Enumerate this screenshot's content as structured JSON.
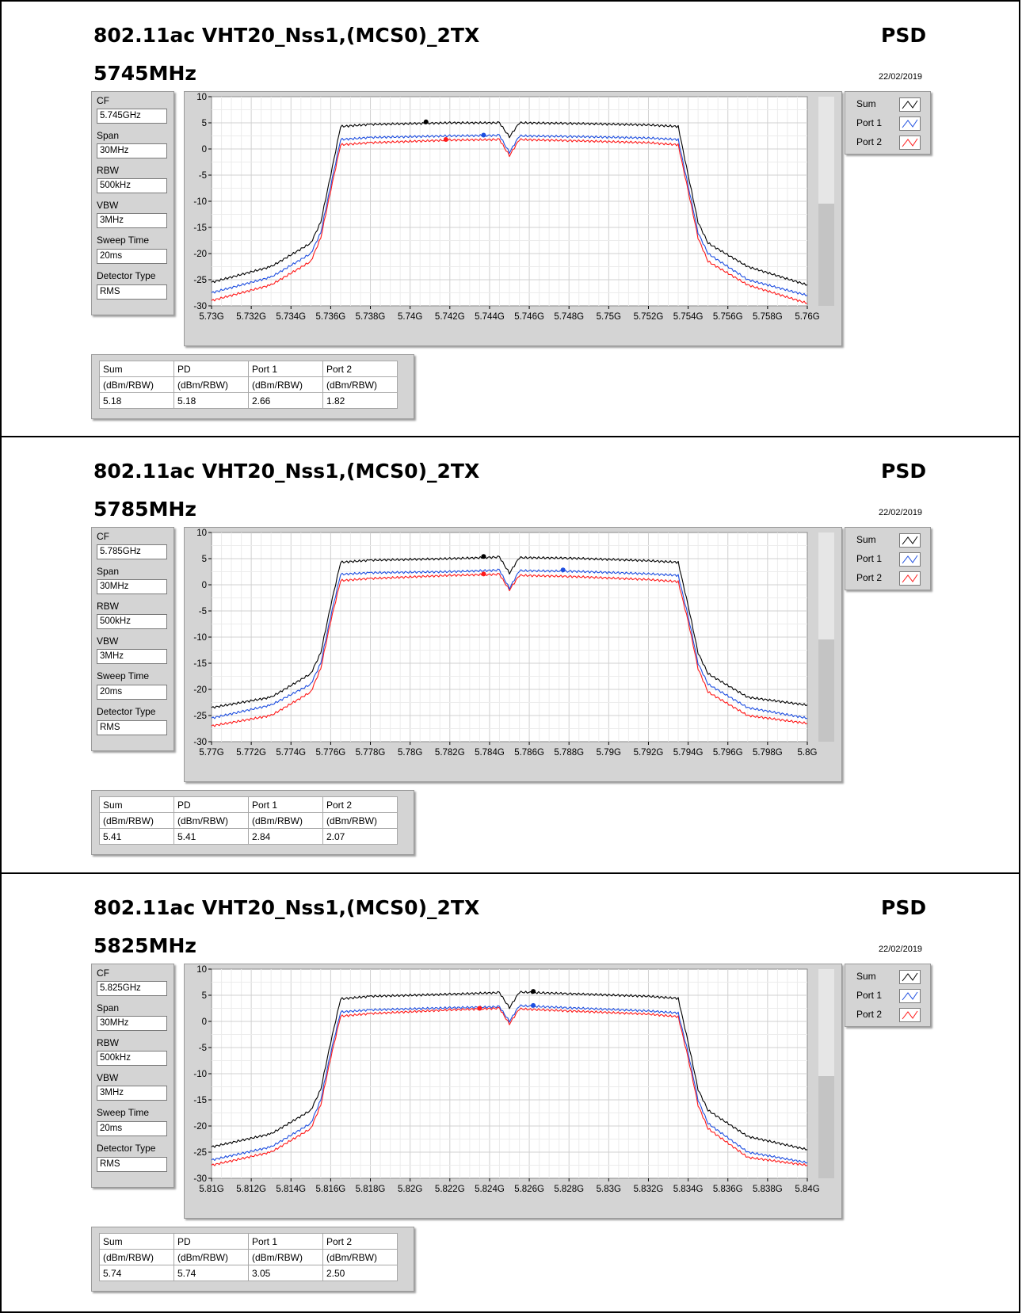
{
  "panels": [
    {
      "title": "802.11ac VHT20_Nss1,(MCS0)_2TX",
      "frequency": "5745MHz",
      "tag": "PSD",
      "date": "22/02/2019",
      "settings": [
        {
          "label": "CF",
          "value": "5.745GHz"
        },
        {
          "label": "Span",
          "value": "30MHz"
        },
        {
          "label": "RBW",
          "value": "500kHz"
        },
        {
          "label": "VBW",
          "value": "3MHz"
        },
        {
          "label": "Sweep Time",
          "value": "20ms"
        },
        {
          "label": "Detector Type",
          "value": "RMS"
        }
      ],
      "legend": [
        "Sum",
        "Port 1",
        "Port 2"
      ],
      "results": {
        "headers": [
          "Sum",
          "PD",
          "Port 1",
          "Port 2"
        ],
        "units": [
          "(dBm/RBW)",
          "(dBm/RBW)",
          "(dBm/RBW)",
          "(dBm/RBW)"
        ],
        "values": [
          "5.18",
          "5.18",
          "2.66",
          "1.82"
        ]
      }
    },
    {
      "title": "802.11ac VHT20_Nss1,(MCS0)_2TX",
      "frequency": "5785MHz",
      "tag": "PSD",
      "date": "22/02/2019",
      "settings": [
        {
          "label": "CF",
          "value": "5.785GHz"
        },
        {
          "label": "Span",
          "value": "30MHz"
        },
        {
          "label": "RBW",
          "value": "500kHz"
        },
        {
          "label": "VBW",
          "value": "3MHz"
        },
        {
          "label": "Sweep Time",
          "value": "20ms"
        },
        {
          "label": "Detector Type",
          "value": "RMS"
        }
      ],
      "legend": [
        "Sum",
        "Port 1",
        "Port 2"
      ],
      "results": {
        "headers": [
          "Sum",
          "PD",
          "Port 1",
          "Port 2"
        ],
        "units": [
          "(dBm/RBW)",
          "(dBm/RBW)",
          "(dBm/RBW)",
          "(dBm/RBW)"
        ],
        "values": [
          "5.41",
          "5.41",
          "2.84",
          "2.07"
        ]
      }
    },
    {
      "title": "802.11ac VHT20_Nss1,(MCS0)_2TX",
      "frequency": "5825MHz",
      "tag": "PSD",
      "date": "22/02/2019",
      "settings": [
        {
          "label": "CF",
          "value": "5.825GHz"
        },
        {
          "label": "Span",
          "value": "30MHz"
        },
        {
          "label": "RBW",
          "value": "500kHz"
        },
        {
          "label": "VBW",
          "value": "3MHz"
        },
        {
          "label": "Sweep Time",
          "value": "20ms"
        },
        {
          "label": "Detector Type",
          "value": "RMS"
        }
      ],
      "legend": [
        "Sum",
        "Port 1",
        "Port 2"
      ],
      "results": {
        "headers": [
          "Sum",
          "PD",
          "Port 1",
          "Port 2"
        ],
        "units": [
          "(dBm/RBW)",
          "(dBm/RBW)",
          "(dBm/RBW)",
          "(dBm/RBW)"
        ],
        "values": [
          "5.74",
          "5.74",
          "3.05",
          "2.50"
        ]
      }
    }
  ],
  "colors": {
    "sum": "#000000",
    "port1": "#1f4fe0",
    "port2": "#ff1a1a"
  },
  "chart_data": [
    {
      "type": "line",
      "xlim": [
        5.73,
        5.76
      ],
      "ylim": [
        -30,
        10
      ],
      "x_ticks": [
        "5.73G",
        "5.732G",
        "5.734G",
        "5.736G",
        "5.738G",
        "5.74G",
        "5.742G",
        "5.744G",
        "5.746G",
        "5.748G",
        "5.75G",
        "5.752G",
        "5.754G",
        "5.756G",
        "5.758G",
        "5.76G"
      ],
      "y_ticks": [
        "10",
        "5",
        "0",
        "-5",
        "-10",
        "-15",
        "-20",
        "-25",
        "-30"
      ],
      "x": [
        5.73,
        5.733,
        5.735,
        5.7355,
        5.736,
        5.7365,
        5.738,
        5.742,
        5.7445,
        5.745,
        5.7455,
        5.748,
        5.752,
        5.7535,
        5.754,
        5.7545,
        5.755,
        5.757,
        5.76
      ],
      "series": [
        {
          "name": "Sum",
          "values": [
            -25.5,
            -22.5,
            -18,
            -14,
            -5,
            4.3,
            4.7,
            5.0,
            5.0,
            2.3,
            5.0,
            4.9,
            4.6,
            4.3,
            -5,
            -14,
            -18,
            -22.5,
            -26.0
          ]
        },
        {
          "name": "Port 1",
          "values": [
            -27.5,
            -24.5,
            -20,
            -16,
            -7,
            1.8,
            2.2,
            2.5,
            2.6,
            -0.7,
            2.5,
            2.4,
            2.1,
            1.8,
            -7,
            -16,
            -20,
            -25,
            -28.0
          ]
        },
        {
          "name": "Port 2",
          "values": [
            -29.0,
            -26,
            -21.5,
            -17,
            -8,
            0.8,
            1.2,
            1.7,
            1.8,
            -1.3,
            1.8,
            1.6,
            1.2,
            0.8,
            -8,
            -17,
            -21.5,
            -26,
            -29.5
          ]
        }
      ],
      "markers": [
        {
          "series": "Sum",
          "x": 5.7408,
          "y": 5.18
        },
        {
          "series": "Port 1",
          "x": 5.7437,
          "y": 2.66
        },
        {
          "series": "Port 2",
          "x": 5.7418,
          "y": 1.82
        }
      ]
    },
    {
      "type": "line",
      "xlim": [
        5.77,
        5.8
      ],
      "ylim": [
        -30,
        10
      ],
      "x_ticks": [
        "5.77G",
        "5.772G",
        "5.774G",
        "5.776G",
        "5.778G",
        "5.78G",
        "5.782G",
        "5.784G",
        "5.786G",
        "5.788G",
        "5.79G",
        "5.792G",
        "5.794G",
        "5.796G",
        "5.798G",
        "5.8G"
      ],
      "y_ticks": [
        "10",
        "5",
        "0",
        "-5",
        "-10",
        "-15",
        "-20",
        "-25",
        "-30"
      ],
      "x": [
        5.77,
        5.773,
        5.775,
        5.7755,
        5.776,
        5.7765,
        5.778,
        5.782,
        5.7845,
        5.785,
        5.7855,
        5.788,
        5.792,
        5.7935,
        5.794,
        5.7945,
        5.795,
        5.797,
        5.8
      ],
      "series": [
        {
          "name": "Sum",
          "values": [
            -23.5,
            -21.5,
            -17,
            -13,
            -4,
            4.3,
            4.7,
            5.0,
            5.3,
            2.2,
            5.2,
            5.1,
            4.6,
            4.3,
            -4,
            -13,
            -17,
            -21.5,
            -23.0
          ]
        },
        {
          "name": "Port 1",
          "values": [
            -25.5,
            -23,
            -19,
            -15,
            -6,
            2.0,
            2.3,
            2.5,
            2.8,
            -0.7,
            2.7,
            2.6,
            2.1,
            1.8,
            -6,
            -15,
            -19,
            -23.5,
            -25.5
          ]
        },
        {
          "name": "Port 2",
          "values": [
            -27.0,
            -25,
            -20.5,
            -16,
            -7,
            0.8,
            1.2,
            1.8,
            2.0,
            -1.0,
            1.8,
            1.6,
            1.0,
            0.6,
            -7,
            -16,
            -20.5,
            -25,
            -26.5
          ]
        }
      ],
      "markers": [
        {
          "series": "Sum",
          "x": 5.7837,
          "y": 5.41
        },
        {
          "series": "Port 1",
          "x": 5.7877,
          "y": 2.84
        },
        {
          "series": "Port 2",
          "x": 5.7837,
          "y": 2.07
        }
      ]
    },
    {
      "type": "line",
      "xlim": [
        5.81,
        5.84
      ],
      "ylim": [
        -30,
        10
      ],
      "x_ticks": [
        "5.81G",
        "5.812G",
        "5.814G",
        "5.816G",
        "5.818G",
        "5.82G",
        "5.822G",
        "5.824G",
        "5.826G",
        "5.828G",
        "5.83G",
        "5.832G",
        "5.834G",
        "5.836G",
        "5.838G",
        "5.84G"
      ],
      "y_ticks": [
        "10",
        "5",
        "0",
        "-5",
        "-10",
        "-15",
        "-20",
        "-25",
        "-30"
      ],
      "x": [
        5.81,
        5.813,
        5.815,
        5.8155,
        5.816,
        5.8165,
        5.818,
        5.822,
        5.8245,
        5.825,
        5.8255,
        5.828,
        5.832,
        5.8335,
        5.834,
        5.8345,
        5.835,
        5.837,
        5.84
      ],
      "series": [
        {
          "name": "Sum",
          "values": [
            -24.0,
            -21.5,
            -17,
            -13,
            -4,
            4.3,
            4.8,
            5.2,
            5.5,
            2.6,
            5.6,
            5.3,
            4.8,
            4.4,
            -4,
            -13,
            -17,
            -22,
            -24.5
          ]
        },
        {
          "name": "Port 1",
          "values": [
            -26.5,
            -24,
            -19.5,
            -15,
            -6,
            1.8,
            2.2,
            2.6,
            2.8,
            0.0,
            3.0,
            2.6,
            2.0,
            1.6,
            -6,
            -15,
            -19.5,
            -25,
            -27.0
          ]
        },
        {
          "name": "Port 2",
          "values": [
            -27.5,
            -25,
            -20.5,
            -16,
            -7,
            1.0,
            1.5,
            2.2,
            2.5,
            -0.5,
            2.4,
            2.0,
            1.4,
            0.9,
            -7,
            -16,
            -20.5,
            -26,
            -27.5
          ]
        }
      ],
      "markers": [
        {
          "series": "Sum",
          "x": 5.8262,
          "y": 5.74
        },
        {
          "series": "Port 1",
          "x": 5.8262,
          "y": 3.05
        },
        {
          "series": "Port 2",
          "x": 5.8235,
          "y": 2.5
        }
      ]
    }
  ]
}
